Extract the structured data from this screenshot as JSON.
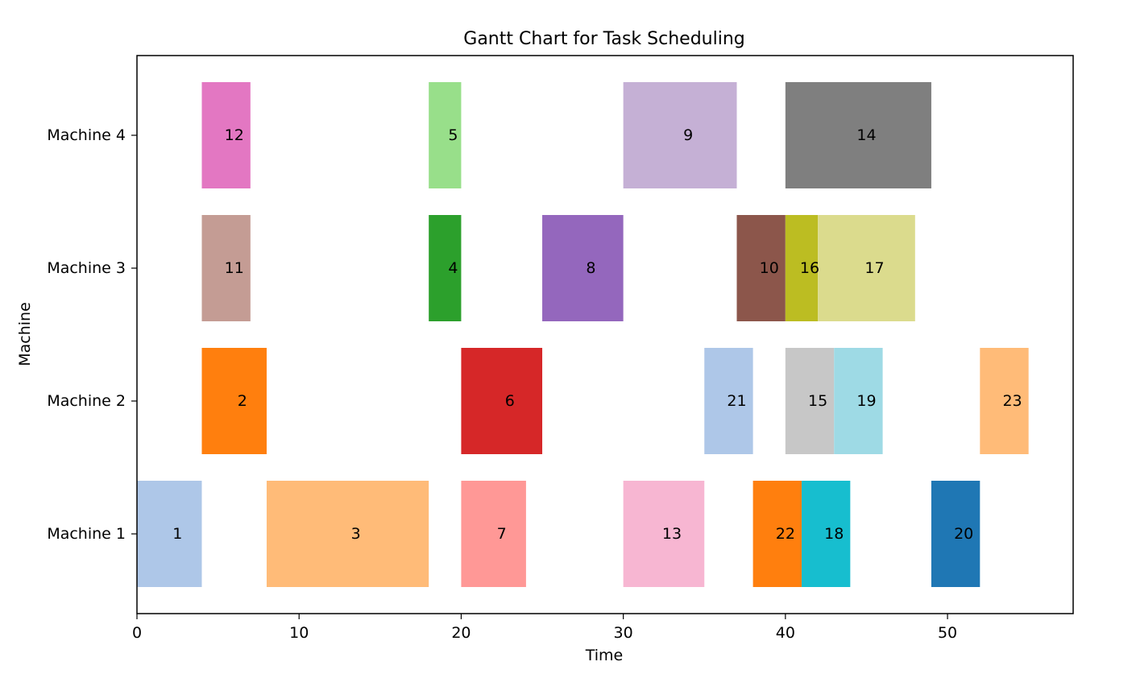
{
  "chart_data": {
    "type": "gantt",
    "title": "Gantt Chart for Task Scheduling",
    "xlabel": "Time",
    "ylabel": "Machine",
    "xlim": [
      0,
      57.75
    ],
    "xticks": [
      0,
      10,
      20,
      30,
      40,
      50
    ],
    "machines": [
      "Machine 1",
      "Machine 2",
      "Machine 3",
      "Machine 4"
    ],
    "grid": false,
    "tasks": [
      {
        "label": "1",
        "machine": "Machine 1",
        "start": 0,
        "end": 4,
        "color": "#aec7e8"
      },
      {
        "label": "3",
        "machine": "Machine 1",
        "start": 8,
        "end": 18,
        "color": "#ffbb78"
      },
      {
        "label": "7",
        "machine": "Machine 1",
        "start": 20,
        "end": 24,
        "color": "#ff9896"
      },
      {
        "label": "13",
        "machine": "Machine 1",
        "start": 30,
        "end": 35,
        "color": "#f7b6d2"
      },
      {
        "label": "22",
        "machine": "Machine 1",
        "start": 38,
        "end": 41,
        "color": "#ff7f0e"
      },
      {
        "label": "18",
        "machine": "Machine 1",
        "start": 41,
        "end": 44,
        "color": "#17becf"
      },
      {
        "label": "20",
        "machine": "Machine 1",
        "start": 49,
        "end": 52,
        "color": "#1f77b4"
      },
      {
        "label": "2",
        "machine": "Machine 2",
        "start": 4,
        "end": 8,
        "color": "#ff7f0e"
      },
      {
        "label": "6",
        "machine": "Machine 2",
        "start": 20,
        "end": 25,
        "color": "#d62728"
      },
      {
        "label": "21",
        "machine": "Machine 2",
        "start": 35,
        "end": 38,
        "color": "#aec7e8"
      },
      {
        "label": "15",
        "machine": "Machine 2",
        "start": 40,
        "end": 43,
        "color": "#c7c7c7"
      },
      {
        "label": "19",
        "machine": "Machine 2",
        "start": 43,
        "end": 46,
        "color": "#9edae5"
      },
      {
        "label": "23",
        "machine": "Machine 2",
        "start": 52,
        "end": 55,
        "color": "#ffbb78"
      },
      {
        "label": "11",
        "machine": "Machine 3",
        "start": 4,
        "end": 7,
        "color": "#c49c94"
      },
      {
        "label": "4",
        "machine": "Machine 3",
        "start": 18,
        "end": 20,
        "color": "#2ca02c"
      },
      {
        "label": "8",
        "machine": "Machine 3",
        "start": 25,
        "end": 30,
        "color": "#9467bd"
      },
      {
        "label": "10",
        "machine": "Machine 3",
        "start": 37,
        "end": 40,
        "color": "#8c564b"
      },
      {
        "label": "16",
        "machine": "Machine 3",
        "start": 40,
        "end": 42,
        "color": "#bcbd22"
      },
      {
        "label": "17",
        "machine": "Machine 3",
        "start": 42,
        "end": 48,
        "color": "#dbdb8d"
      },
      {
        "label": "12",
        "machine": "Machine 4",
        "start": 4,
        "end": 7,
        "color": "#e377c2"
      },
      {
        "label": "5",
        "machine": "Machine 4",
        "start": 18,
        "end": 20,
        "color": "#98df8a"
      },
      {
        "label": "9",
        "machine": "Machine 4",
        "start": 30,
        "end": 37,
        "color": "#c5b0d5"
      },
      {
        "label": "14",
        "machine": "Machine 4",
        "start": 40,
        "end": 49,
        "color": "#7f7f7f"
      }
    ]
  }
}
